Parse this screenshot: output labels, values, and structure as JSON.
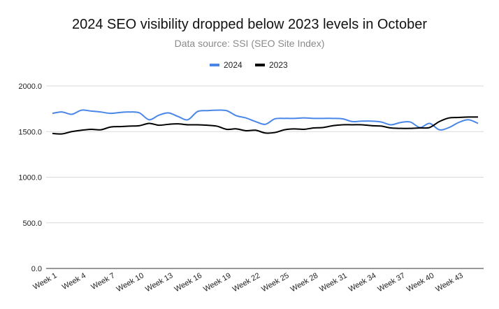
{
  "chart_data": {
    "type": "line",
    "title": "2024 SEO visibility dropped below 2023 levels in October",
    "subtitle": "Data source: SSI (SEO Site Index)",
    "xlabel": "",
    "ylabel": "",
    "ylim": [
      0,
      2000
    ],
    "yticks": [
      "2000.0",
      "1500.0",
      "1000.0",
      "500.0",
      "0.0"
    ],
    "ytick_values": [
      2000,
      1500,
      1000,
      500,
      0
    ],
    "x": [
      "Week 1",
      "Week 2",
      "Week 3",
      "Week 4",
      "Week 5",
      "Week 6",
      "Week 7",
      "Week 8",
      "Week 9",
      "Week 10",
      "Week 11",
      "Week 12",
      "Week 13",
      "Week 14",
      "Week 15",
      "Week 16",
      "Week 17",
      "Week 18",
      "Week 19",
      "Week 20",
      "Week 21",
      "Week 22",
      "Week 23",
      "Week 24",
      "Week 25",
      "Week 26",
      "Week 27",
      "Week 28",
      "Week 29",
      "Week 30",
      "Week 31",
      "Week 32",
      "Week 33",
      "Week 34",
      "Week 35",
      "Week 36",
      "Week 37",
      "Week 38",
      "Week 39",
      "Week 40",
      "Week 41",
      "Week 42",
      "Week 43",
      "Week 44",
      "Week 45"
    ],
    "xtick_labels": [
      "Week 1",
      "Week 4",
      "Week 7",
      "Week 10",
      "Week 13",
      "Week 16",
      "Week 19",
      "Week 22",
      "Week 25",
      "Week 28",
      "Week 31",
      "Week 34",
      "Week 37",
      "Week 40",
      "Week 43"
    ],
    "legend_position": "top-center",
    "grid": true,
    "series": [
      {
        "name": "2024",
        "color": "#4a86e8",
        "values": [
          1700,
          1715,
          1690,
          1735,
          1725,
          1715,
          1700,
          1710,
          1715,
          1705,
          1630,
          1680,
          1705,
          1665,
          1630,
          1720,
          1730,
          1735,
          1730,
          1675,
          1650,
          1610,
          1580,
          1640,
          1645,
          1645,
          1650,
          1645,
          1645,
          1645,
          1640,
          1610,
          1615,
          1615,
          1605,
          1575,
          1600,
          1605,
          1545,
          1590,
          1520,
          1545,
          1600,
          1630,
          1590
        ]
      },
      {
        "name": "2023",
        "color": "#000000",
        "values": [
          1480,
          1475,
          1500,
          1515,
          1525,
          1520,
          1550,
          1555,
          1560,
          1565,
          1590,
          1570,
          1580,
          1585,
          1575,
          1575,
          1570,
          1560,
          1525,
          1530,
          1510,
          1515,
          1485,
          1490,
          1520,
          1530,
          1525,
          1540,
          1545,
          1565,
          1575,
          1575,
          1575,
          1565,
          1560,
          1540,
          1535,
          1535,
          1540,
          1545,
          1610,
          1650,
          1655,
          1660,
          1660
        ]
      }
    ]
  }
}
